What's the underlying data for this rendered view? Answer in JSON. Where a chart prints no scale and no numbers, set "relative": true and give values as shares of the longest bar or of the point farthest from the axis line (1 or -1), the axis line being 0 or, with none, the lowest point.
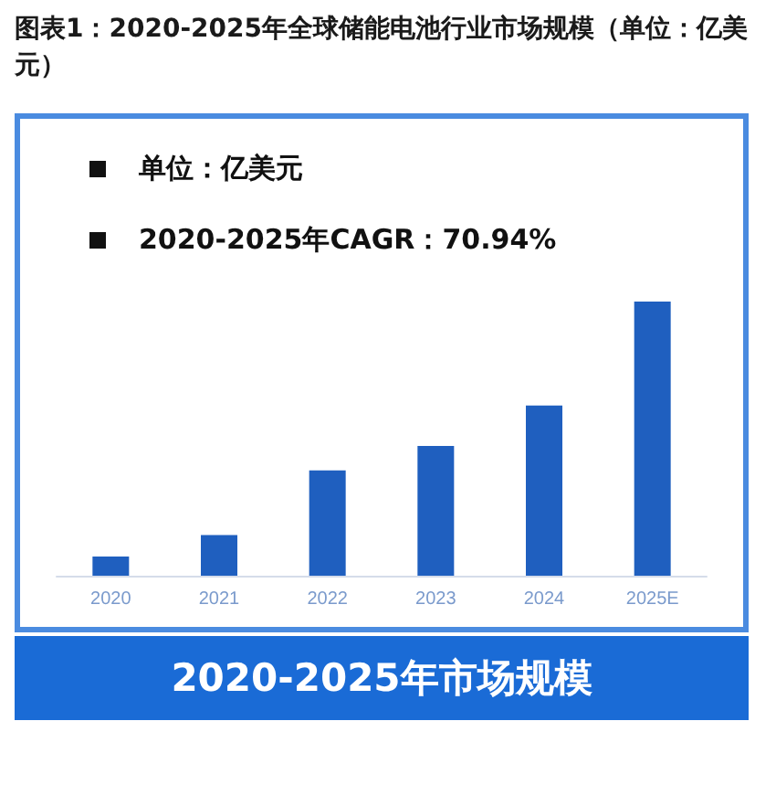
{
  "chart_data": {
    "type": "bar",
    "title": "图表1：2020-2025年全球储能电池行业市场规模（单位：亿美元）",
    "xlabel": "2020-2025年市场规模",
    "annotations": [
      "单位：亿美元",
      "2020-2025年CAGR：70.94%"
    ],
    "categories": [
      "2020",
      "2021",
      "2022",
      "2023",
      "2024",
      "2025E"
    ],
    "values": [
      0.07,
      0.148,
      0.384,
      0.473,
      0.621,
      1
    ],
    "color": "#1f5fbf",
    "relative": true
  }
}
